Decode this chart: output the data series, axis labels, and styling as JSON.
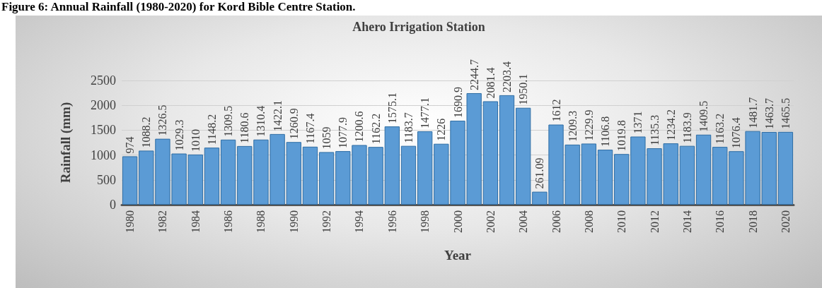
{
  "chart_data": {
    "type": "bar",
    "title": "Ahero Irrigation Station",
    "xlabel": "Year",
    "ylabel": "Rainfall (mm)",
    "annotations": [
      "Figure 6: Annual Rainfall (1980-2020) for Kord Bible Centre Station."
    ],
    "categories": [
      "1980",
      null,
      "1982",
      null,
      "1984",
      null,
      "1986",
      null,
      "1988",
      null,
      "1990",
      null,
      "1992",
      null,
      "1994",
      null,
      "1996",
      null,
      "1998",
      null,
      "2000",
      null,
      "2002",
      null,
      "2004",
      null,
      "2006",
      null,
      "2008",
      null,
      "2010",
      null,
      "2012",
      null,
      "2014",
      null,
      "2016",
      null,
      "2018",
      null,
      "2020"
    ],
    "values": [
      974,
      1088.2,
      1326.5,
      1029.3,
      1010,
      1148.2,
      1309.5,
      1180.6,
      1310.4,
      1422.1,
      1260.9,
      1167.4,
      1059,
      1077.9,
      1200.6,
      1162.2,
      1575.1,
      1183.7,
      1477.1,
      1226,
      1690.9,
      2244.7,
      2081.4,
      2203.4,
      1950.1,
      261.09,
      1612,
      1209.3,
      1229.9,
      1106.8,
      1019.8,
      1371,
      1135.3,
      1234.2,
      1183.9,
      1409.5,
      1163.2,
      1076.4,
      1481.7,
      1463.7,
      1465.5
    ],
    "color": "#5b9bd5",
    "data_labels": true,
    "ylim": [
      0,
      2500
    ],
    "yticks": [
      0,
      500,
      1000,
      1500,
      2000,
      2500
    ],
    "grid": "y"
  }
}
